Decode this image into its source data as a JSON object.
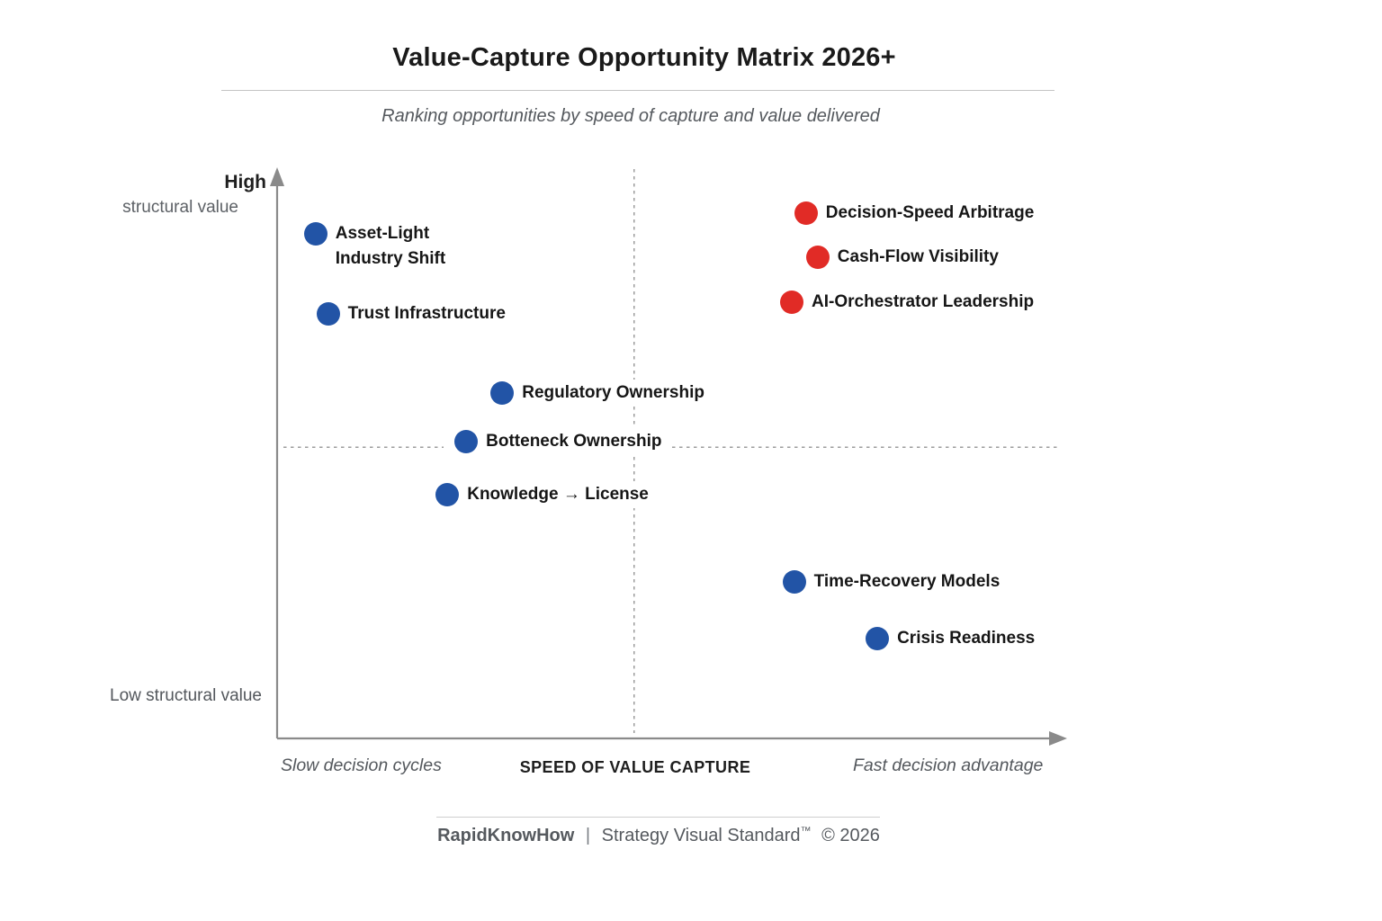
{
  "title": "Value-Capture Opportunity Matrix 2026+",
  "subtitle": "Ranking opportunities by speed of capture and value delivered",
  "colors": {
    "blue": "#2254A6",
    "red": "#E12B26",
    "axis": "#8A8A8A",
    "dashed": "#9C9C9C",
    "brand_blue": "#1D4FA1"
  },
  "y_axis": {
    "high_label": "High",
    "high_sub_label": "structural value",
    "low_label": "Low structural value"
  },
  "x_axis": {
    "title": "SPEED OF VALUE CAPTURE",
    "left_label": "Slow decision cycles",
    "right_label": "Fast decision advantage"
  },
  "footer": {
    "brand": "RapidKnowHow",
    "separator": "|",
    "text": "Strategy Visual Standard",
    "tm": "™",
    "copyright": "© 2026"
  },
  "chart_data": {
    "type": "scatter",
    "title": "Value-Capture Opportunity Matrix 2026+",
    "subtitle": "Ranking opportunities by speed of capture and value delivered",
    "xlabel": "SPEED OF VALUE CAPTURE",
    "x_range_labels": [
      "Slow decision cycles",
      "Fast decision advantage"
    ],
    "y_range_labels": [
      "Low structural value",
      "High structural value"
    ],
    "xlim": [
      0,
      100
    ],
    "ylim": [
      0,
      100
    ],
    "grid": false,
    "quadrant_lines": {
      "x": 45.5,
      "y": 51.3
    },
    "points": [
      {
        "label": "Asset-Light Industry Shift",
        "lines": [
          "Asset-Light",
          "Industry Shift"
        ],
        "x": 4.9,
        "y": 88.9,
        "color": "blue"
      },
      {
        "label": "Trust Infrastructure",
        "x": 6.5,
        "y": 74.8,
        "color": "blue"
      },
      {
        "label": "Decision-Speed Arbitrage",
        "x": 67.4,
        "y": 92.6,
        "color": "red"
      },
      {
        "label": "Cash-Flow Visibility",
        "x": 68.9,
        "y": 84.8,
        "color": "red"
      },
      {
        "label": "AI-Orchestrator Leadership",
        "x": 65.6,
        "y": 76.9,
        "color": "red"
      },
      {
        "label": "Regulatory Ownership",
        "x": 28.7,
        "y": 60.9,
        "color": "blue"
      },
      {
        "label": "Botteneck Ownership",
        "x": 24.1,
        "y": 52.3,
        "color": "blue"
      },
      {
        "label": "Knowledge → License",
        "x": 21.7,
        "y": 42.9,
        "color": "blue"
      },
      {
        "label": "Time-Recovery Models",
        "x": 65.9,
        "y": 27.6,
        "color": "blue"
      },
      {
        "label": "Crisis Readiness",
        "x": 76.5,
        "y": 17.6,
        "color": "blue"
      }
    ]
  }
}
